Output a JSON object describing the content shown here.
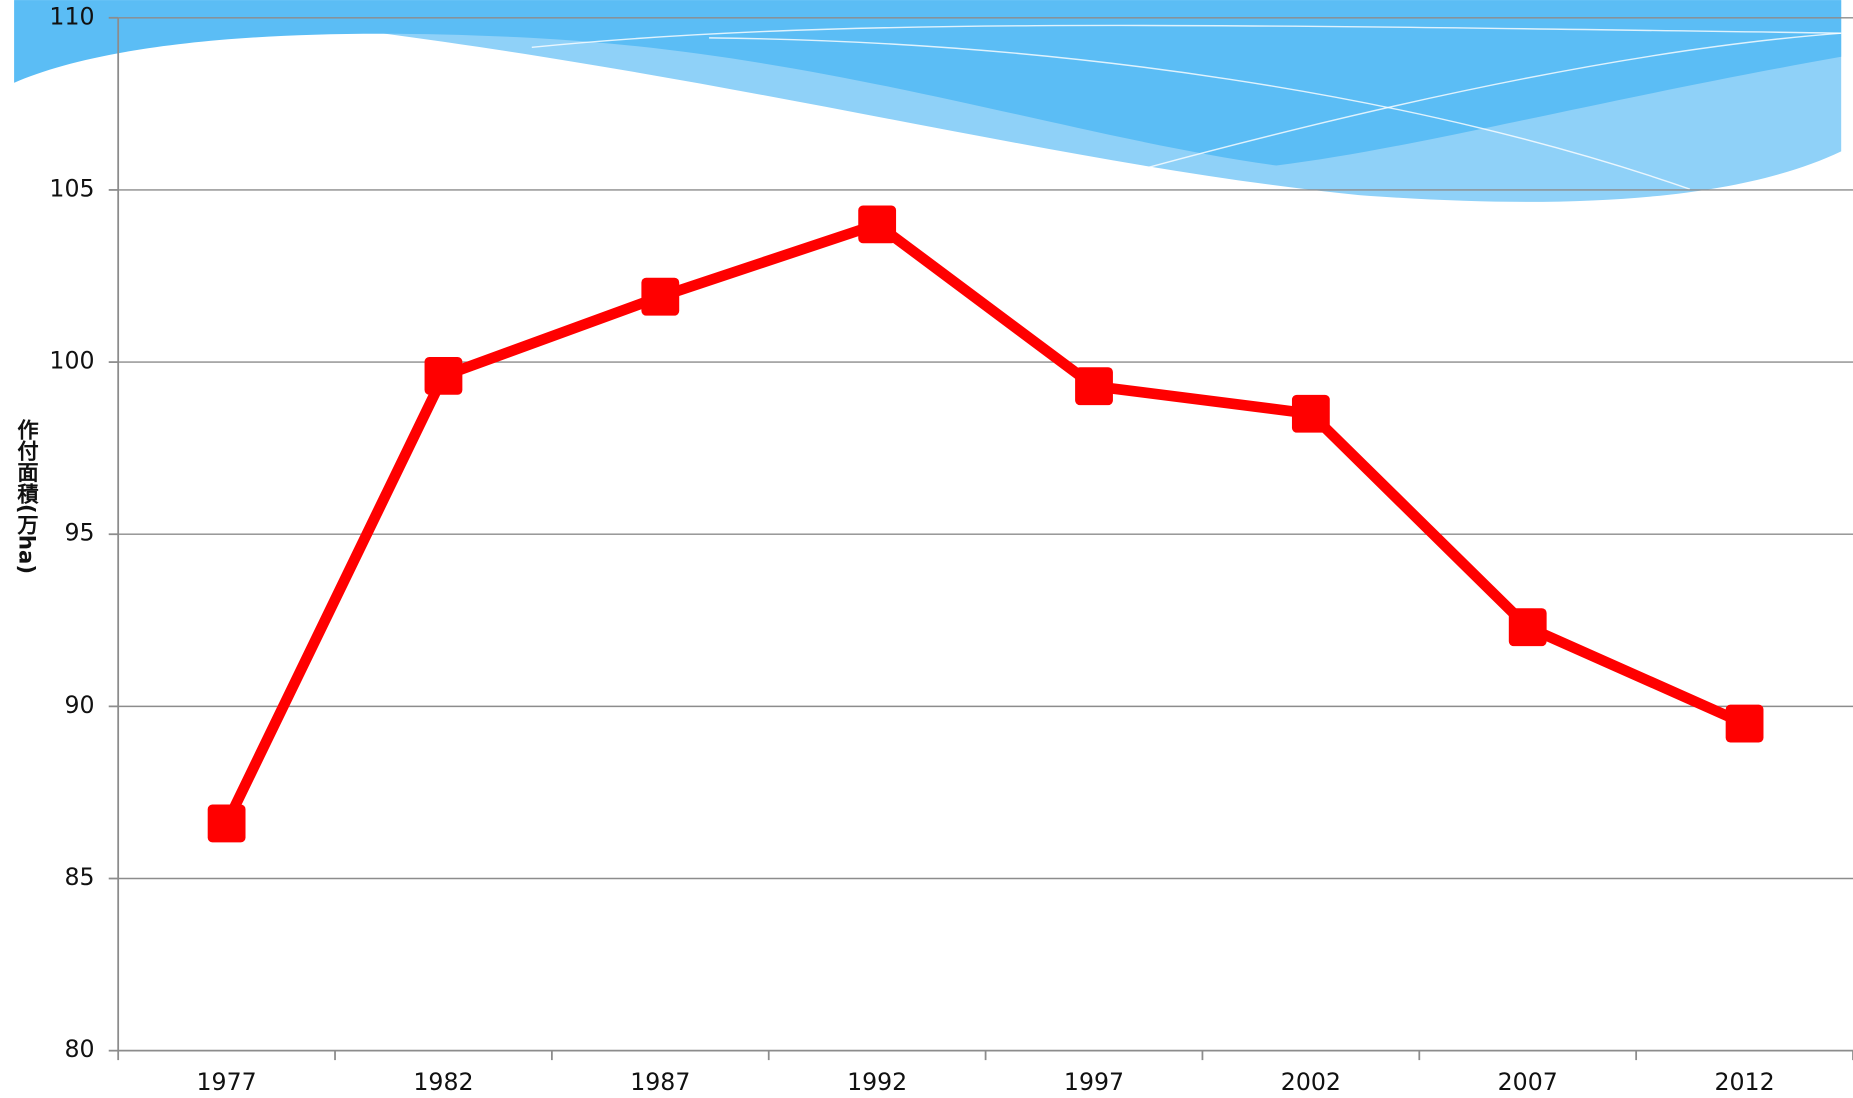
{
  "chart_data": {
    "type": "line",
    "y_label": "作付面積(万ha)",
    "categories": [
      "1977",
      "1982",
      "1987",
      "1992",
      "1997",
      "2002",
      "2007",
      "2012"
    ],
    "values": [
      86.6,
      99.6,
      101.9,
      104.0,
      99.3,
      98.5,
      92.3,
      89.5
    ],
    "color": "#ff0000",
    "ylim": [
      80,
      110
    ],
    "yticks": [
      80,
      85,
      90,
      95,
      100,
      105,
      110
    ],
    "grid": true
  }
}
